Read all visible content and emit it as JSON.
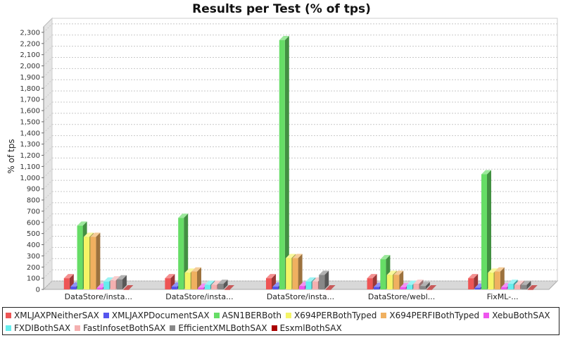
{
  "chart_data": {
    "type": "bar",
    "title": "Results per Test (% of tps)",
    "xlabel": "",
    "ylabel": "% of tps",
    "ylim": [
      0,
      2350
    ],
    "yticks": [
      0,
      100,
      200,
      300,
      400,
      500,
      600,
      700,
      800,
      900,
      1000,
      1100,
      1200,
      1300,
      1400,
      1500,
      1600,
      1700,
      1800,
      1900,
      2000,
      2100,
      2200,
      2300
    ],
    "ytick_labels": [
      "0",
      "100",
      "200",
      "300",
      "400",
      "500",
      "600",
      "700",
      "800",
      "900",
      "1,000",
      "1,100",
      "1,200",
      "1,300",
      "1,400",
      "1,500",
      "1,600",
      "1,700",
      "1,800",
      "1,900",
      "2,000",
      "2,100",
      "2,200",
      "2,300"
    ],
    "grid": true,
    "legend": "bottom",
    "categories": [
      "DataStore/insta...",
      "DataStore/insta...",
      "DataStore/insta...",
      "DataStore/webl...",
      "FixML-..."
    ],
    "series": [
      {
        "name": "XMLJAXPNeitherSAX",
        "color": "#ee5555",
        "values": [
          100,
          100,
          100,
          100,
          100
        ]
      },
      {
        "name": "XMLJAXPDocumentSAX",
        "color": "#5555ee",
        "values": [
          25,
          25,
          25,
          22,
          15
        ]
      },
      {
        "name": "ASN1BERBoth",
        "color": "#66dd66",
        "values": [
          570,
          640,
          2230,
          270,
          1030
        ]
      },
      {
        "name": "X694PERBothTyped",
        "color": "#f4f466",
        "values": [
          470,
          150,
          280,
          130,
          150
        ]
      },
      {
        "name": "X694PERFIBothTyped",
        "color": "#f0b060",
        "values": [
          470,
          160,
          280,
          130,
          160
        ]
      },
      {
        "name": "XebuBothSAX",
        "color": "#ee55ee",
        "values": [
          15,
          15,
          30,
          20,
          20
        ]
      },
      {
        "name": "FXDIBothSAX",
        "color": "#66eeee",
        "values": [
          70,
          40,
          70,
          40,
          50
        ]
      },
      {
        "name": "FastInfosetBothSAX",
        "color": "#f4b0b0",
        "values": [
          80,
          40,
          70,
          50,
          40
        ]
      },
      {
        "name": "EfficientXMLBothSAX",
        "color": "#888888",
        "values": [
          90,
          50,
          130,
          30,
          40
        ]
      },
      {
        "name": "EsxmlBothSAX",
        "color": "#aa0000",
        "values": [
          0,
          0,
          0,
          0,
          0
        ]
      }
    ]
  }
}
